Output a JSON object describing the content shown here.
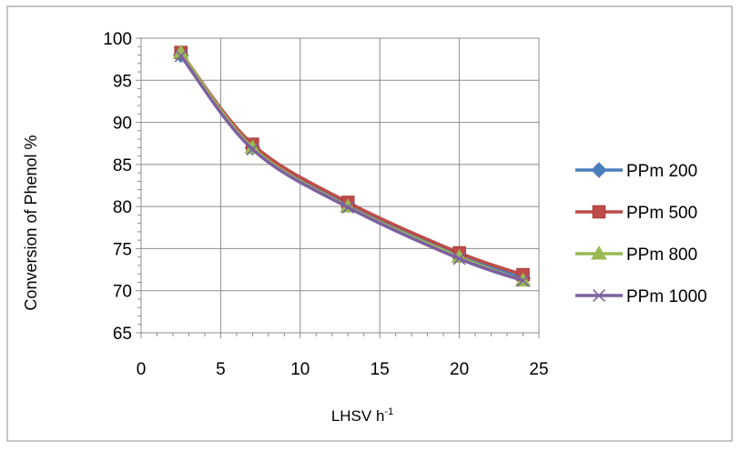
{
  "chart_data": {
    "type": "line",
    "xlabel": "LHSV h",
    "xlabel_superscript": "-1",
    "ylabel": "Conversion of Phenol %",
    "xlim": [
      0,
      25
    ],
    "ylim": [
      65,
      100
    ],
    "xticks": [
      0,
      5,
      10,
      15,
      20,
      25
    ],
    "yticks": [
      65,
      70,
      75,
      80,
      85,
      90,
      95,
      100
    ],
    "grid": true,
    "legend_position": "right",
    "smooth": true,
    "x": [
      2.5,
      7,
      13,
      20,
      24
    ],
    "series": [
      {
        "name": "PPm 200",
        "marker": "diamond",
        "color": "#4A7EBB",
        "values": [
          98.0,
          87.0,
          80.2,
          74.2,
          71.5
        ]
      },
      {
        "name": "PPm 500",
        "marker": "square",
        "color": "#BE4B48",
        "values": [
          98.3,
          87.4,
          80.5,
          74.5,
          71.9
        ]
      },
      {
        "name": "PPm 800",
        "marker": "triangle",
        "color": "#98B954",
        "values": [
          98.3,
          87.0,
          80.0,
          74.0,
          71.2
        ]
      },
      {
        "name": "PPm 1000",
        "marker": "cross",
        "color": "#7D60A0",
        "values": [
          97.9,
          86.8,
          79.9,
          73.8,
          71.2
        ]
      }
    ]
  }
}
